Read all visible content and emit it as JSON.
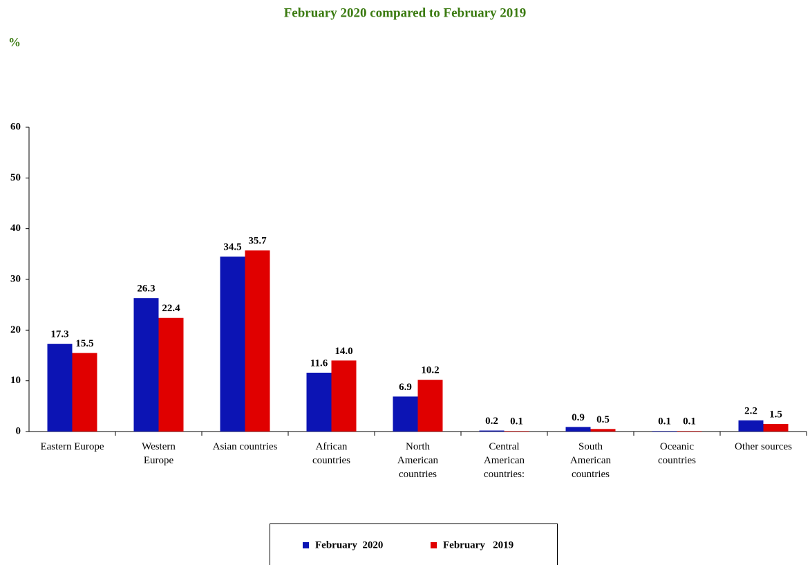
{
  "chart_data": {
    "type": "bar",
    "title": "February 2020 compared to February  2019",
    "y_label": "%",
    "categories": [
      "Eastern Europe",
      "Western\nEurope",
      "Asian countries",
      "African\ncountries",
      "North\nAmerican\ncountries",
      "Central\nAmerican\ncountries:",
      "South\nAmerican\ncountries",
      "Oceanic\ncountries",
      "Other sources"
    ],
    "series": [
      {
        "name": "February  2020",
        "color": "#0c14b4",
        "values": [
          17.3,
          26.3,
          34.5,
          11.6,
          6.9,
          0.2,
          0.9,
          0.1,
          2.2
        ],
        "value_labels": [
          "17.3",
          "26.3",
          "34.5",
          "11.6",
          "6.9",
          "0.2",
          "0.9",
          "0.1",
          "2.2"
        ]
      },
      {
        "name": "February   2019",
        "color": "#e00000",
        "values": [
          15.5,
          22.4,
          35.7,
          14,
          10.2,
          0.1,
          0.5,
          0.1,
          1.5
        ],
        "value_labels": [
          "15.5",
          "22.4",
          "35.7",
          "14.0",
          "10.2",
          "0.1",
          "0.5",
          "0.1",
          "1.5"
        ]
      }
    ],
    "ylim": [
      0,
      60
    ],
    "yticks": [
      0,
      10,
      20,
      30,
      40,
      50,
      60
    ],
    "grid": false,
    "legend": "bottom"
  }
}
